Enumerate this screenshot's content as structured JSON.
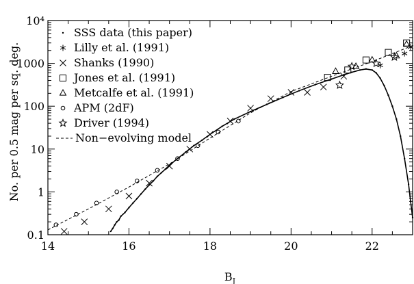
{
  "chart_data": {
    "type": "scatter",
    "xlabel": "B",
    "xlabel_sub": "J",
    "ylabel": "No. per 0.5 mag per sq. deg.",
    "xlim": [
      14,
      23
    ],
    "ylim": [
      0.1,
      10000
    ],
    "yscale": "log",
    "x_ticks": [
      "14",
      "16",
      "18",
      "20",
      "22"
    ],
    "y_ticks": [
      "0.1",
      "1",
      "10",
      "100",
      "1000",
      "10⁴"
    ],
    "legend_position": "top-left",
    "legend": [
      {
        "symbol": "dot",
        "label": "SSS data (this paper)"
      },
      {
        "symbol": "asterisk",
        "label": "Lilly et al. (1991)"
      },
      {
        "symbol": "cross",
        "label": "Shanks (1990)"
      },
      {
        "symbol": "square",
        "label": "Jones et al. (1991)"
      },
      {
        "symbol": "triangle",
        "label": "Metcalfe et al. (1991)"
      },
      {
        "symbol": "circle",
        "label": "APM (2dF)"
      },
      {
        "symbol": "star",
        "label": "Driver (1994)"
      },
      {
        "symbol": "dashed",
        "label": "Non−evolving model"
      }
    ],
    "series": [
      {
        "name": "SSS data (this paper)",
        "symbol": "dot",
        "points": [
          [
            15.55,
            0.12
          ],
          [
            15.6,
            0.14
          ],
          [
            15.65,
            0.17
          ],
          [
            15.7,
            0.2
          ],
          [
            15.75,
            0.22
          ],
          [
            15.8,
            0.27
          ],
          [
            15.9,
            0.33
          ],
          [
            16.0,
            0.43
          ],
          [
            16.1,
            0.55
          ],
          [
            16.2,
            0.7
          ],
          [
            16.3,
            0.9
          ],
          [
            16.4,
            1.15
          ],
          [
            16.5,
            1.45
          ],
          [
            16.6,
            1.8
          ],
          [
            16.7,
            2.3
          ],
          [
            16.8,
            2.8
          ],
          [
            16.9,
            3.4
          ],
          [
            17.0,
            4.2
          ],
          [
            17.2,
            6.0
          ],
          [
            17.4,
            8.5
          ],
          [
            17.6,
            12
          ],
          [
            17.8,
            16
          ],
          [
            18.0,
            22
          ],
          [
            18.3,
            34
          ],
          [
            18.6,
            50
          ],
          [
            19.0,
            75
          ],
          [
            19.4,
            110
          ],
          [
            19.8,
            160
          ],
          [
            20.2,
            230
          ],
          [
            20.6,
            320
          ],
          [
            21.0,
            430
          ],
          [
            21.3,
            540
          ],
          [
            21.5,
            620
          ],
          [
            21.7,
            700
          ],
          [
            21.85,
            740
          ],
          [
            22.0,
            700
          ],
          [
            22.1,
            600
          ],
          [
            22.2,
            450
          ],
          [
            22.3,
            300
          ],
          [
            22.4,
            180
          ],
          [
            22.5,
            100
          ],
          [
            22.6,
            50
          ],
          [
            22.7,
            20
          ],
          [
            22.8,
            6
          ],
          [
            22.9,
            1.5
          ],
          [
            22.95,
            0.6
          ],
          [
            23.0,
            0.25
          ]
        ]
      },
      {
        "name": "Lilly et al. (1991)",
        "symbol": "asterisk",
        "points": [
          [
            22.2,
            900
          ],
          [
            22.8,
            1700
          ],
          [
            22.95,
            2400
          ]
        ]
      },
      {
        "name": "Shanks (1990)",
        "symbol": "cross",
        "points": [
          [
            14.4,
            0.12
          ],
          [
            14.9,
            0.2
          ],
          [
            15.5,
            0.4
          ],
          [
            16.0,
            0.8
          ],
          [
            16.5,
            1.6
          ],
          [
            17.0,
            4.0
          ],
          [
            17.5,
            10
          ],
          [
            18.0,
            22
          ],
          [
            18.5,
            45
          ],
          [
            19.0,
            90
          ],
          [
            19.5,
            150
          ],
          [
            20.0,
            210
          ],
          [
            20.4,
            210
          ],
          [
            20.8,
            280
          ],
          [
            21.3,
            500
          ]
        ]
      },
      {
        "name": "Jones et al. (1991)",
        "symbol": "square",
        "points": [
          [
            20.9,
            470
          ],
          [
            21.4,
            700
          ],
          [
            21.85,
            1200
          ],
          [
            22.4,
            1800
          ],
          [
            22.85,
            3000
          ]
        ]
      },
      {
        "name": "Metcalfe et al. (1991)",
        "symbol": "triangle",
        "points": [
          [
            21.1,
            650
          ],
          [
            21.6,
            850
          ],
          [
            22.0,
            1200
          ],
          [
            22.6,
            1500
          ],
          [
            22.85,
            2800
          ]
        ]
      },
      {
        "name": "APM (2dF)",
        "symbol": "circle",
        "points": [
          [
            14.2,
            0.17
          ],
          [
            14.7,
            0.3
          ],
          [
            15.2,
            0.55
          ],
          [
            15.7,
            1.0
          ],
          [
            16.2,
            1.8
          ],
          [
            16.7,
            3.2
          ],
          [
            17.2,
            6
          ],
          [
            17.7,
            12
          ],
          [
            18.2,
            25
          ],
          [
            18.7,
            45
          ]
        ]
      },
      {
        "name": "Driver (1994)",
        "symbol": "star",
        "points": [
          [
            21.2,
            310
          ],
          [
            21.5,
            850
          ],
          [
            22.1,
            1000
          ],
          [
            22.55,
            1400
          ]
        ]
      },
      {
        "name": "Non−evolving model",
        "symbol": "dashed",
        "points": [
          [
            14,
            0.13
          ],
          [
            15,
            0.4
          ],
          [
            16,
            1.3
          ],
          [
            17,
            4.5
          ],
          [
            18,
            18
          ],
          [
            19,
            70
          ],
          [
            20,
            220
          ],
          [
            21,
            500
          ],
          [
            22,
            1100
          ],
          [
            23,
            2600
          ]
        ]
      }
    ]
  }
}
